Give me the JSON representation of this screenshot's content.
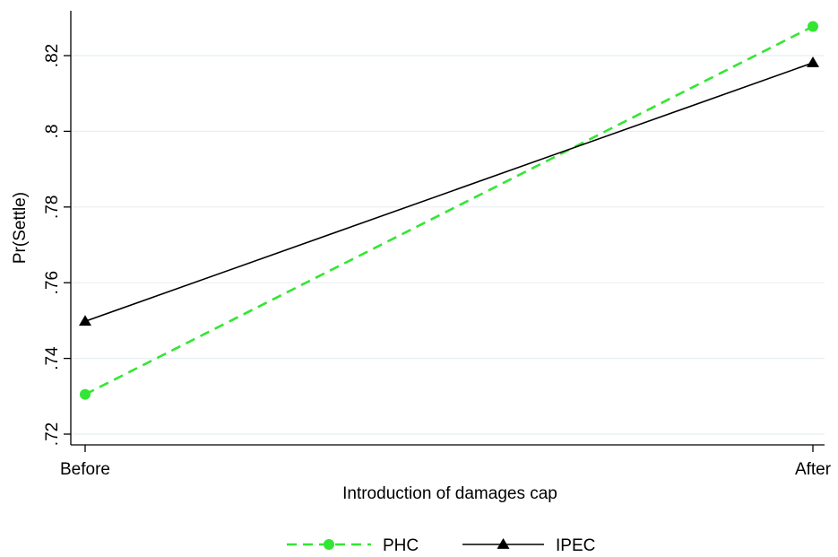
{
  "chart_data": {
    "type": "line",
    "categories": [
      "Before",
      "After"
    ],
    "series": [
      {
        "name": "PHC",
        "values": [
          0.7305,
          0.8277
        ],
        "color": "#33e633",
        "style": "dashed",
        "marker": "circle"
      },
      {
        "name": "IPEC",
        "values": [
          0.7498,
          0.8181
        ],
        "color": "#000000",
        "style": "solid",
        "marker": "triangle"
      }
    ],
    "xlabel": "Introduction of damages cap",
    "ylabel": "Pr(Settle)",
    "ylim": [
      0.72,
      0.82
    ],
    "yticks": [
      0.72,
      0.74,
      0.76,
      0.78,
      0.8,
      0.82
    ],
    "ytick_labels": [
      ".72",
      ".74",
      ".76",
      ".78",
      ".8",
      ".82"
    ],
    "grid": true,
    "legend_position": "bottom"
  }
}
